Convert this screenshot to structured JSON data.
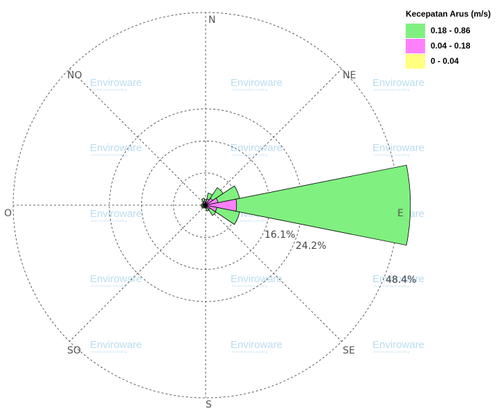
{
  "chart_data": {
    "type": "windrose",
    "directions": [
      "N",
      "NE",
      "E",
      "SE",
      "S",
      "SO",
      "O",
      "NO"
    ],
    "ring_labels": [
      "16.1%",
      "24.2%",
      "48.4%"
    ],
    "ring_values": [
      16.1,
      24.2,
      48.4
    ],
    "rmax": 48.4,
    "legend_title": "Kecepatan Arus (m/s)",
    "bins": [
      {
        "label": "0.18 - 0.86",
        "color": "#80f080"
      },
      {
        "label": "0.04 - 0.18",
        "color": "#ff80ff"
      },
      {
        "label": "0 - 0.04",
        "color": "#ffff80"
      }
    ],
    "sectors": [
      {
        "direction": "N",
        "angle": 0,
        "values": [
          0.6,
          0.6,
          0.2
        ]
      },
      {
        "direction": "NNE",
        "angle": 22.5,
        "values": [
          1.5,
          1.3,
          0.3
        ]
      },
      {
        "direction": "NE",
        "angle": 45,
        "values": [
          3.2,
          1.8,
          0.3
        ]
      },
      {
        "direction": "ENE",
        "angle": 67.5,
        "values": [
          5.5,
          2.9,
          0.3
        ]
      },
      {
        "direction": "E",
        "angle": 90,
        "values": [
          43.7,
          7.4,
          0.4
        ]
      },
      {
        "direction": "ESE",
        "angle": 112.5,
        "values": [
          5.8,
          2.6,
          0.3
        ]
      },
      {
        "direction": "SE",
        "angle": 135,
        "values": [
          1.8,
          1.1,
          0.2
        ]
      },
      {
        "direction": "SSE",
        "angle": 157.5,
        "values": [
          0.8,
          0.6,
          0.1
        ]
      },
      {
        "direction": "S",
        "angle": 180,
        "values": [
          0.4,
          0.3,
          0.1
        ]
      },
      {
        "direction": "SSW",
        "angle": 202.5,
        "values": [
          0.3,
          0.3,
          0.1
        ]
      },
      {
        "direction": "SW",
        "angle": 225,
        "values": [
          0.4,
          0.4,
          0.1
        ]
      },
      {
        "direction": "WSW",
        "angle": 247.5,
        "values": [
          0.5,
          0.5,
          0.1
        ]
      },
      {
        "direction": "W",
        "angle": 270,
        "values": [
          0.4,
          0.6,
          0.1
        ]
      },
      {
        "direction": "WNW",
        "angle": 292.5,
        "values": [
          0.3,
          0.5,
          0.1
        ]
      },
      {
        "direction": "NW",
        "angle": 315,
        "values": [
          0.3,
          0.5,
          0.1
        ]
      },
      {
        "direction": "NNW",
        "angle": 337.5,
        "values": [
          0.8,
          0.8,
          0.2
        ]
      }
    ]
  },
  "watermark": {
    "text": "Enviroware",
    "subtext": "Environmental Consulting"
  }
}
